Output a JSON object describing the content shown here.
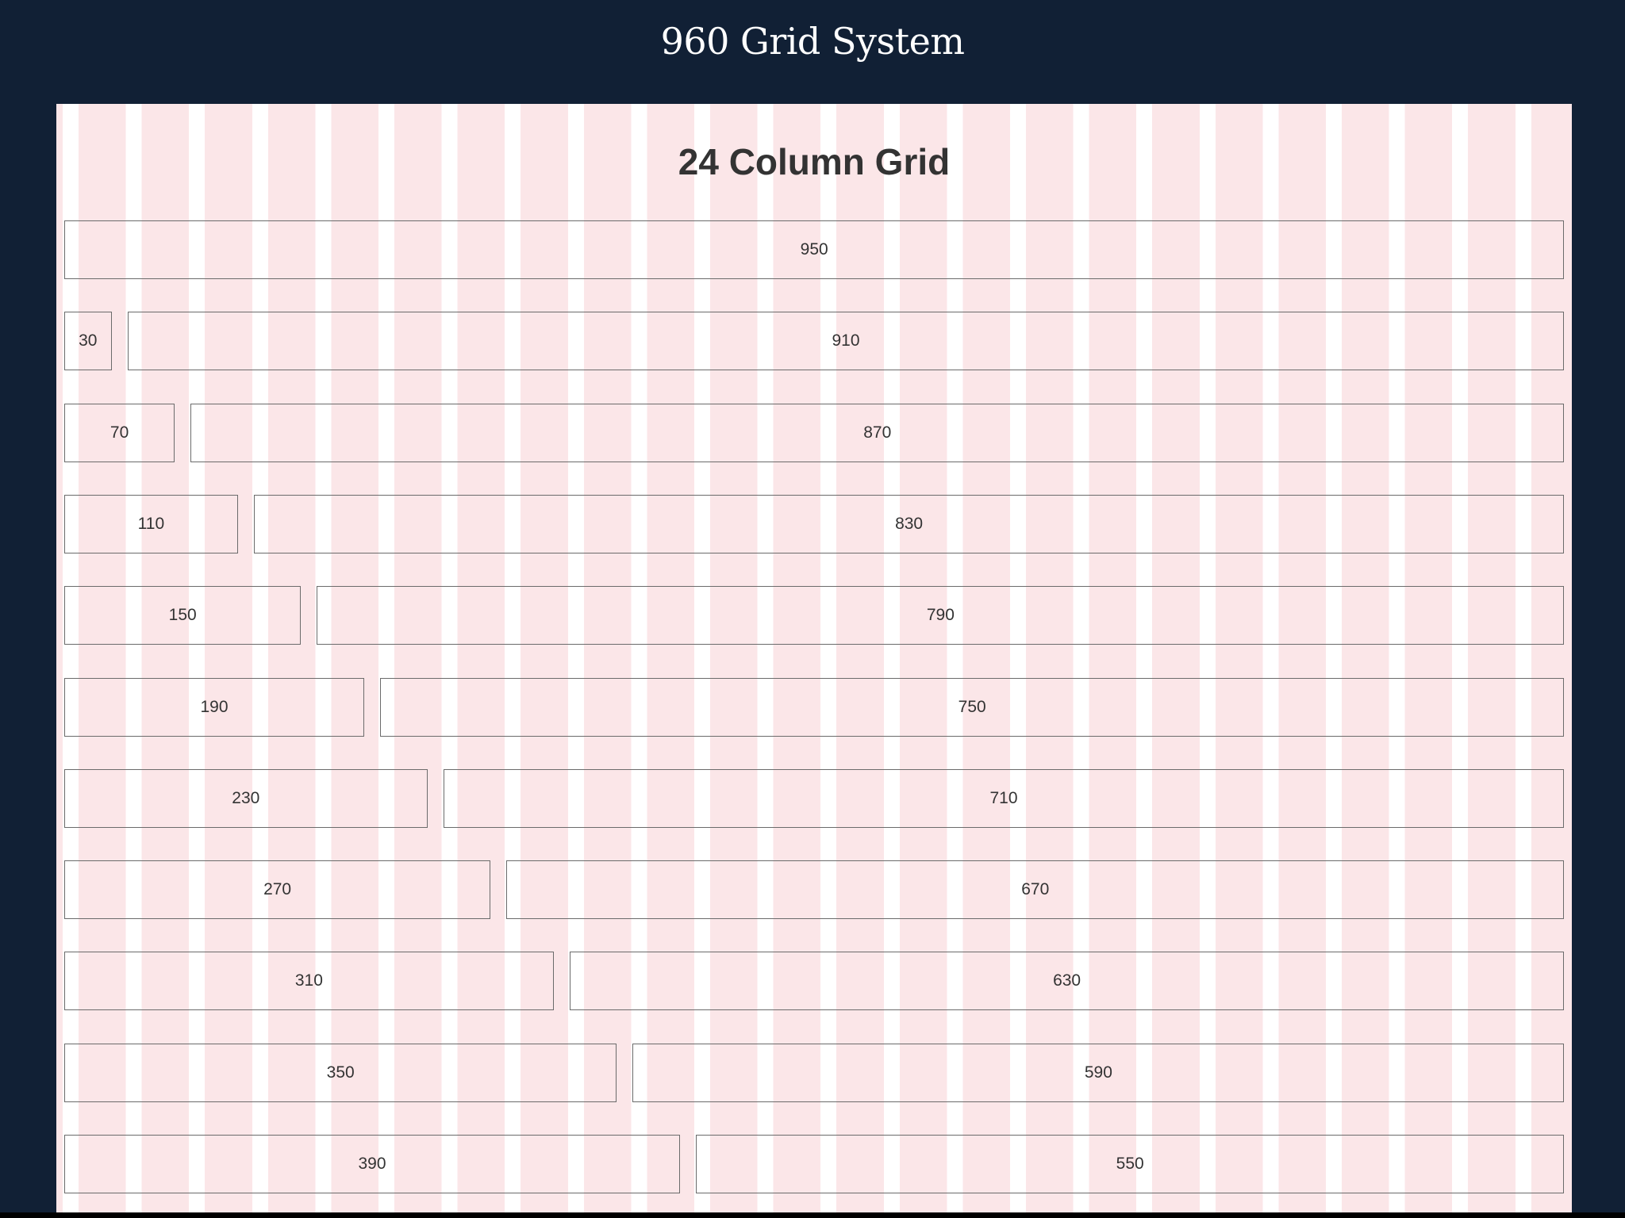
{
  "page": {
    "title": "960 Grid System"
  },
  "grid": {
    "heading": "24 Column Grid",
    "columns": 24,
    "rows": [
      [
        "950"
      ],
      [
        "30",
        "910"
      ],
      [
        "70",
        "870"
      ],
      [
        "110",
        "830"
      ],
      [
        "150",
        "790"
      ],
      [
        "190",
        "750"
      ],
      [
        "230",
        "710"
      ],
      [
        "270",
        "670"
      ],
      [
        "310",
        "630"
      ],
      [
        "350",
        "590"
      ],
      [
        "390",
        "550"
      ]
    ]
  },
  "colors": {
    "background": "#112035",
    "column_tint": "#fbe6e8",
    "gutter": "#ffffff",
    "box_border": "#6b6b6b",
    "text": "#333333"
  }
}
